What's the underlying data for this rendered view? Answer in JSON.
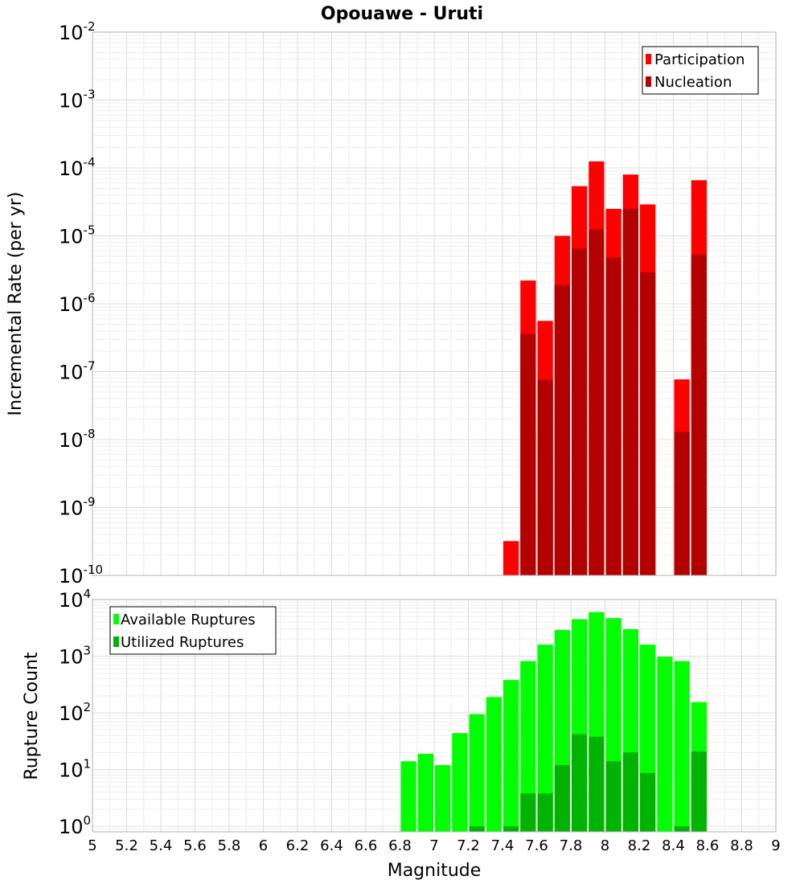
{
  "chart_data": {
    "title": "Opouawe - Uruti",
    "xlabel": "Magnitude",
    "x_ticks": [
      "5",
      "5.2",
      "5.4",
      "5.6",
      "5.8",
      "6",
      "6.2",
      "6.4",
      "6.6",
      "6.8",
      "7",
      "7.2",
      "7.4",
      "7.6",
      "7.8",
      "8",
      "8.2",
      "8.4",
      "8.6",
      "8.8",
      "9"
    ],
    "xlim": [
      5,
      9
    ],
    "panels": [
      {
        "type": "bar",
        "ylabel": "Incremental Rate (per yr)",
        "yscale": "log",
        "ylim": [
          1e-10,
          0.01
        ],
        "y_tick_exponents": [
          "-10",
          "-9",
          "-8",
          "-7",
          "-6",
          "-5",
          "-4",
          "-3",
          "-2"
        ],
        "legend_position": "top-right",
        "x": [
          7.45,
          7.55,
          7.65,
          7.75,
          7.85,
          7.95,
          8.05,
          8.15,
          8.25,
          8.35,
          8.45,
          8.55
        ],
        "series": [
          {
            "name": "Participation",
            "color": "#ff0000",
            "values": [
              3.2e-10,
              2.2e-06,
              5.6e-07,
              1e-05,
              5.4e-05,
              0.000125,
              2.5e-05,
              8e-05,
              2.9e-05,
              null,
              7.7e-08,
              6.6e-05
            ]
          },
          {
            "name": "Nucleation",
            "color": "#b30000",
            "values": [
              null,
              3.6e-07,
              7.6e-08,
              1.9e-06,
              6.5e-06,
              1.25e-05,
              4.8e-06,
              2.5e-05,
              2.9e-06,
              null,
              1.3e-08,
              5.3e-06
            ]
          }
        ]
      },
      {
        "type": "bar",
        "ylabel": "Rupture Count",
        "yscale": "log",
        "ylim": [
          0.8,
          10000
        ],
        "y_tick_exponents": [
          "0",
          "1",
          "2",
          "3",
          "4"
        ],
        "legend_position": "top-left",
        "x": [
          6.85,
          6.95,
          7.05,
          7.15,
          7.25,
          7.35,
          7.45,
          7.55,
          7.65,
          7.75,
          7.85,
          7.95,
          8.05,
          8.15,
          8.25,
          8.35,
          8.45,
          8.55
        ],
        "series": [
          {
            "name": "Available Ruptures",
            "color": "#00ff00",
            "values": [
              14,
              19,
              12,
              44,
              95,
              190,
              380,
              820,
              1600,
              2900,
              4500,
              6000,
              4700,
              3000,
              1600,
              980,
              820,
              155
            ]
          },
          {
            "name": "Utilized Ruptures",
            "color": "#00b300",
            "values": [
              null,
              null,
              null,
              null,
              1,
              null,
              1,
              3.8,
              3.8,
              12,
              42,
              38,
              14,
              20,
              8.7,
              null,
              1,
              21
            ]
          }
        ]
      }
    ]
  }
}
